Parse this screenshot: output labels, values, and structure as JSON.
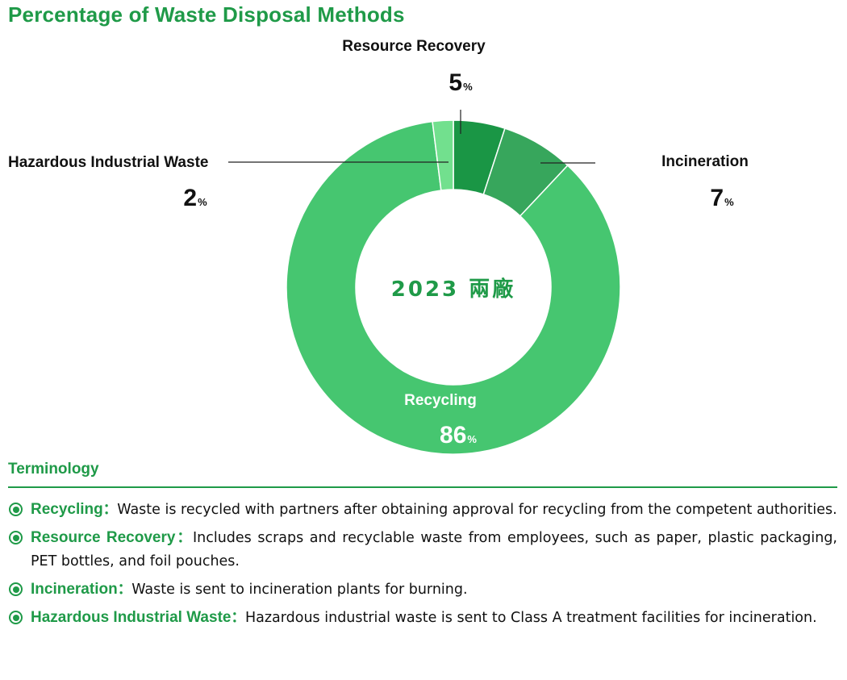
{
  "title": "Percentage of Waste Disposal Methods",
  "chart_data": {
    "type": "pie",
    "donut": true,
    "center_label": "2023 兩廠",
    "percent_sign": "%",
    "categories": [
      "Resource Recovery",
      "Incineration",
      "Recycling",
      "Hazardous Industrial Waste"
    ],
    "values": [
      5,
      7,
      86,
      2
    ],
    "colors": [
      "#1a9645",
      "#37a65c",
      "#46c670",
      "#72e08e"
    ],
    "start_angle_deg": 0,
    "direction": "clockwise"
  },
  "terminology": {
    "heading": "Terminology",
    "separator": "：",
    "items": [
      {
        "term": "Recycling",
        "description": "Waste is recycled with partners after obtaining approval for recycling from the competent authorities."
      },
      {
        "term": "Resource Recovery",
        "description": "Includes scraps and recyclable waste from employees, such as paper, plastic packaging, PET bottles, and foil pouches."
      },
      {
        "term": "Incineration",
        "description": "Waste is sent to incineration plants for burning."
      },
      {
        "term": "Hazardous Industrial Waste",
        "description": "Hazardous industrial waste is sent to Class A treatment facilities for incineration."
      }
    ]
  }
}
